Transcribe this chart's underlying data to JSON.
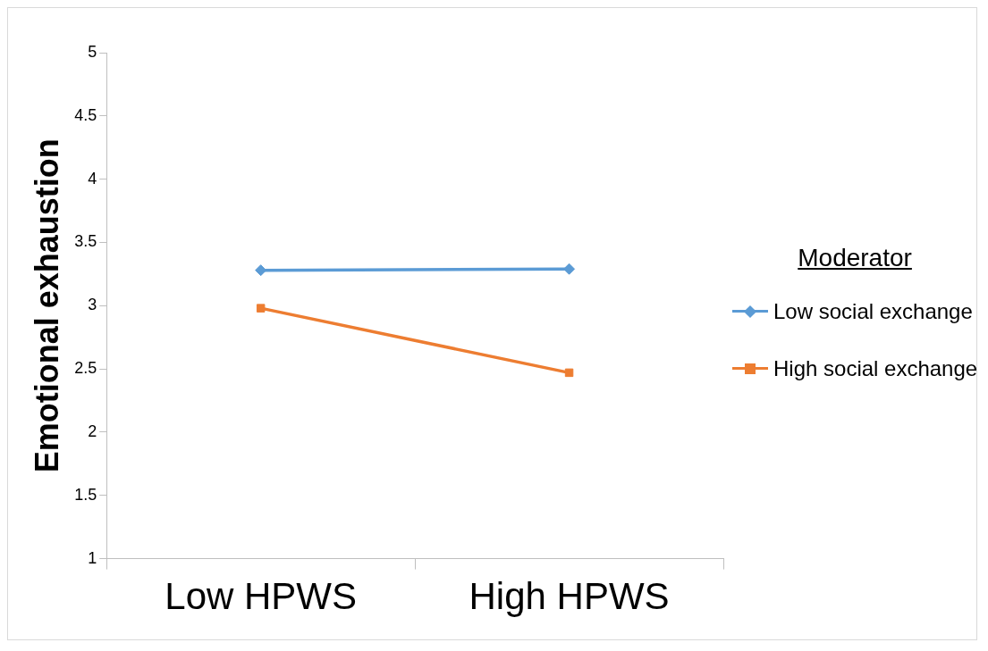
{
  "chart_data": {
    "type": "line",
    "ylabel": "Emotional exhaustion",
    "legend_title": "Moderator",
    "categories": [
      "Low HPWS",
      "High HPWS"
    ],
    "series": [
      {
        "name": "Low social exchange",
        "color": "#5b9bd5",
        "marker": "diamond",
        "values": [
          3.28,
          3.29
        ]
      },
      {
        "name": "High social exchange",
        "color": "#ed7d31",
        "marker": "square",
        "values": [
          2.98,
          2.47
        ]
      }
    ],
    "ylim": [
      1,
      5
    ],
    "yticks": [
      1,
      1.5,
      2,
      2.5,
      3,
      3.5,
      4,
      4.5,
      5
    ],
    "grid": false,
    "legend": "right",
    "line_style": "solid"
  }
}
